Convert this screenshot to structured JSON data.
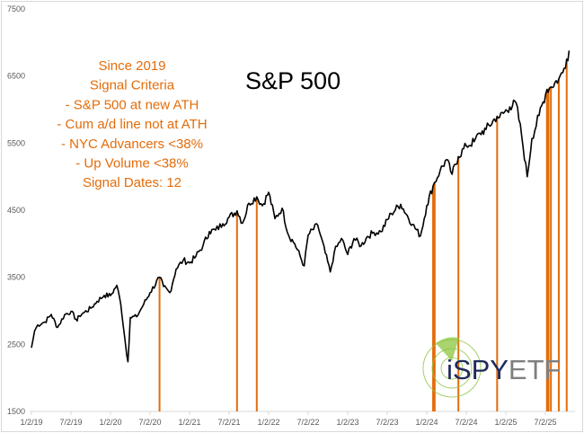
{
  "chart_data": {
    "type": "line",
    "title": "S&P 500",
    "xlabel": "",
    "ylabel": "",
    "ylim": [
      1500,
      7500
    ],
    "yticks": [
      "1500",
      "2500",
      "3500",
      "4500",
      "5500",
      "6500",
      "7500"
    ],
    "xticks": [
      "1/2/19",
      "7/2/19",
      "1/2/20",
      "7/2/20",
      "1/2/21",
      "7/2/21",
      "1/2/22",
      "7/2/22",
      "1/2/23",
      "7/2/23",
      "1/2/24",
      "7/2/24",
      "1/2/25",
      "7/2/25"
    ],
    "xtick_years": [
      2019.0,
      2019.5,
      2020.0,
      2020.5,
      2021.0,
      2021.5,
      2022.0,
      2022.5,
      2023.0,
      2023.5,
      2024.0,
      2024.5,
      2025.0,
      2025.5
    ],
    "grid": false,
    "annotation": [
      "Since 2019",
      "Signal Criteria",
      "- S&P 500 at new ATH",
      "- Cum a/d line not at ATH",
      "- NYC Advancers <38%",
      "- Up Volume <38%",
      "Signal Dates: 12"
    ],
    "series": [
      {
        "name": "S&P 500",
        "color": "#000000",
        "x": [
          2019.0,
          2019.04,
          2019.08,
          2019.17,
          2019.25,
          2019.33,
          2019.42,
          2019.5,
          2019.58,
          2019.6,
          2019.67,
          2019.75,
          2019.83,
          2019.92,
          2020.0,
          2020.08,
          2020.13,
          2020.19,
          2020.22,
          2020.25,
          2020.33,
          2020.42,
          2020.5,
          2020.62,
          2020.67,
          2020.75,
          2020.83,
          2020.92,
          2021.0,
          2021.08,
          2021.17,
          2021.25,
          2021.33,
          2021.42,
          2021.5,
          2021.6,
          2021.67,
          2021.75,
          2021.85,
          2021.92,
          2022.0,
          2022.08,
          2022.17,
          2022.25,
          2022.33,
          2022.45,
          2022.5,
          2022.62,
          2022.78,
          2022.83,
          2022.92,
          2023.0,
          2023.08,
          2023.17,
          2023.25,
          2023.33,
          2023.42,
          2023.55,
          2023.67,
          2023.82,
          2023.92,
          2024.0,
          2024.08,
          2024.17,
          2024.25,
          2024.32,
          2024.4,
          2024.5,
          2024.6,
          2024.67,
          2024.75,
          2024.89,
          2024.92,
          2025.05,
          2025.13,
          2025.2,
          2025.27,
          2025.33,
          2025.42,
          2025.52,
          2025.57,
          2025.67,
          2025.72,
          2025.77,
          2025.8
        ],
        "y": [
          2450,
          2700,
          2790,
          2834,
          2946,
          2752,
          2942,
          2990,
          2850,
          2926,
          2977,
          3038,
          3141,
          3231,
          3226,
          3380,
          3100,
          2500,
          2240,
          2900,
          2912,
          3100,
          3271,
          3500,
          3363,
          3270,
          3622,
          3756,
          3714,
          3811,
          3973,
          4181,
          4204,
          4298,
          4395,
          4490,
          4308,
          4605,
          4700,
          4567,
          4766,
          4374,
          4530,
          4132,
          4000,
          3670,
          4130,
          4280,
          3580,
          3872,
          4080,
          3840,
          4077,
          3970,
          4109,
          4169,
          4180,
          4450,
          4589,
          4288,
          4117,
          4570,
          4860,
          5096,
          5254,
          5036,
          5300,
          5460,
          5522,
          5648,
          5705,
          5900,
          5882,
          6040,
          6100,
          5612,
          5000,
          5569,
          5912,
          6300,
          6339,
          6460,
          6550,
          6753,
          6880
        ]
      }
    ],
    "signals": {
      "name": "Signal Dates",
      "color": "#E46C0A",
      "x": [
        2020.62,
        2021.6,
        2021.85,
        2024.08,
        2024.1,
        2024.4,
        2024.89,
        2025.52,
        2025.54,
        2025.57,
        2025.67,
        2025.77
      ]
    }
  },
  "logo": {
    "text": "iSPYETF"
  }
}
